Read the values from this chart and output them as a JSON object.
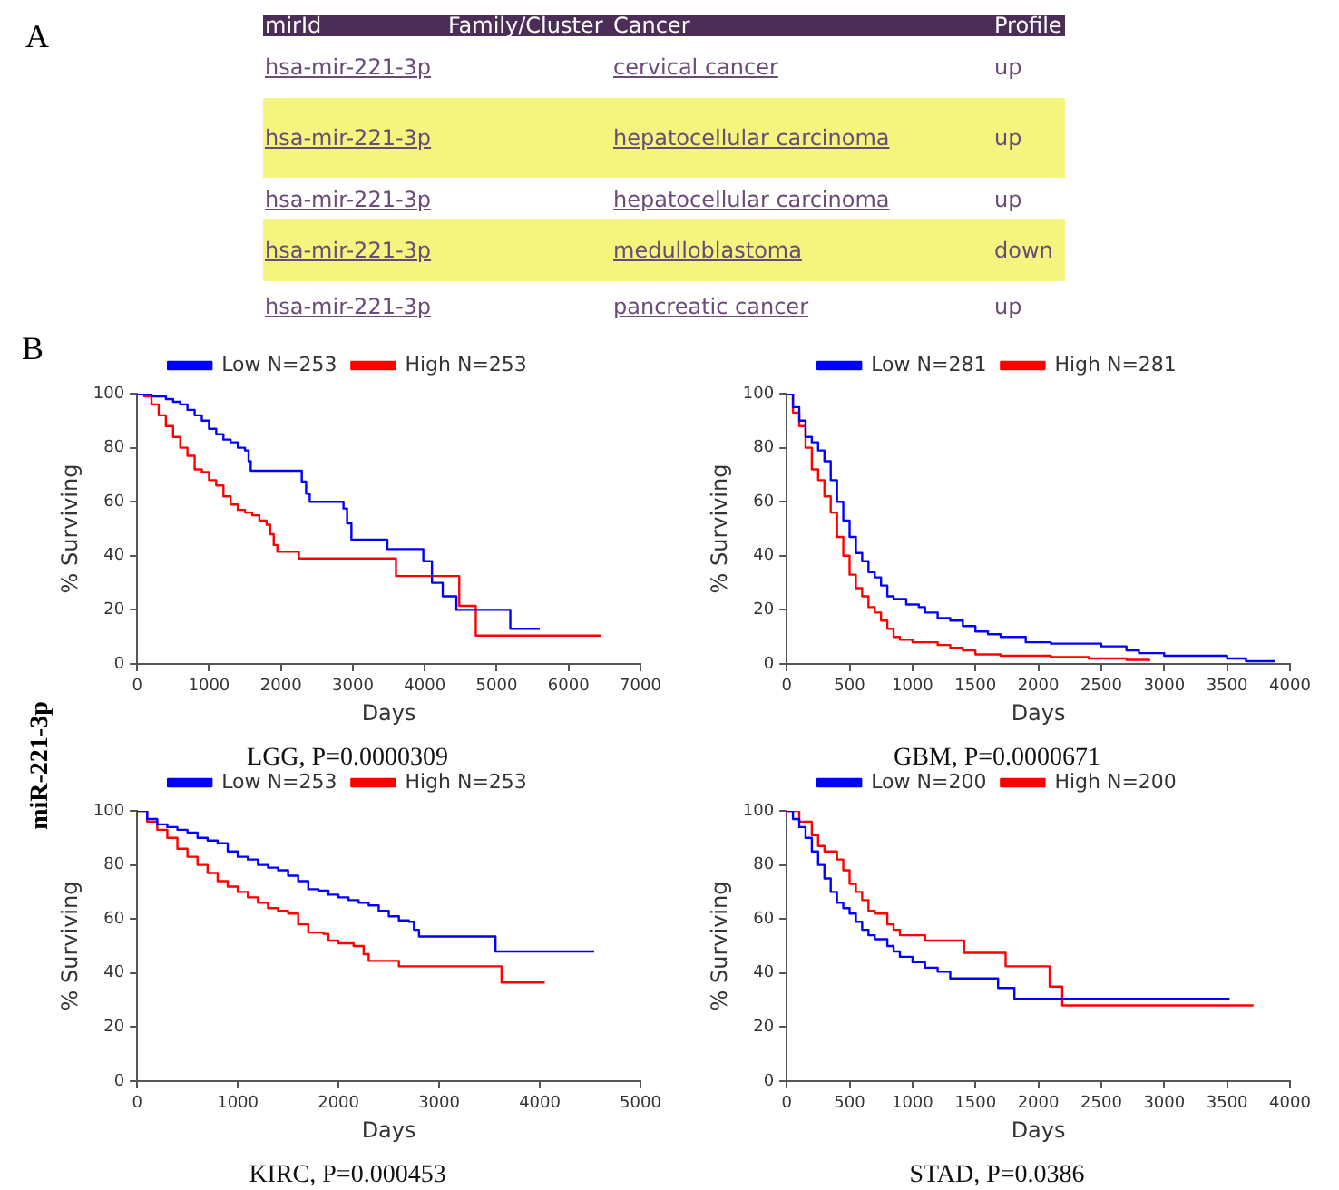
{
  "chart_data": [
    {
      "type": "other",
      "title": "A",
      "categories": [
        "mirId",
        "Family/Cluster",
        "Cancer",
        "Profile"
      ],
      "colors": [
        "#4b2d57",
        "#ffffff",
        "#f3f57f",
        "#ffffff",
        "#f3f57f",
        "#ffffff"
      ],
      "annotations": [
        "hsa-mir-221-3p",
        "cervical cancer",
        "up",
        "hsa-mir-221-3p",
        "hepatocellular carcinoma",
        "up",
        "hsa-mir-221-3p",
        "hepatocellular carcinoma",
        "up",
        "hsa-mir-221-3p",
        "medulloblastoma",
        "down",
        "hsa-mir-221-3p",
        "pancreatic cancer",
        "up"
      ]
    },
    {
      "type": "step",
      "title": "LGG, P=0.0000309",
      "xlabel": "Days",
      "ylabel": "% Surviving",
      "annotations": [
        "B",
        "miR-221-3p"
      ],
      "xlim": [
        0,
        7000
      ],
      "xticks": [
        0,
        1000,
        2000,
        3000,
        4000,
        5000,
        6000,
        7000
      ],
      "ylim": [
        0,
        100
      ],
      "yticks": [
        0,
        20,
        40,
        60,
        80,
        100
      ],
      "legend": "top",
      "grid": false,
      "series": [
        {
          "name": "Low N=253",
          "color": "#0000ff",
          "x": [
            0,
            200,
            400,
            500,
            600,
            700,
            800,
            900,
            1000,
            1100,
            1200,
            1300,
            1400,
            1500,
            1550,
            1580,
            2000,
            2290,
            2350,
            2400,
            2870,
            2920,
            2980,
            3480,
            3980,
            4100,
            4250,
            4440,
            5190,
            5600
          ],
          "values": [
            100,
            99,
            98,
            97,
            96,
            94,
            92,
            90,
            87,
            85,
            83,
            82,
            80,
            79,
            75,
            71.5,
            71.5,
            67.5,
            63,
            60,
            57.5,
            52,
            46,
            42.5,
            38,
            30,
            25,
            20,
            13,
            13
          ]
        },
        {
          "name": "High N=253",
          "color": "#ff0000",
          "x": [
            0,
            100,
            200,
            300,
            400,
            500,
            600,
            700,
            800,
            900,
            1000,
            1100,
            1200,
            1300,
            1400,
            1500,
            1600,
            1700,
            1800,
            1850,
            1900,
            1950,
            2200,
            2250,
            3560,
            3600,
            4480,
            4710,
            6450
          ],
          "values": [
            100,
            99,
            96,
            92,
            88,
            84,
            80,
            77,
            72,
            71,
            68,
            66,
            62,
            59,
            57,
            56,
            55,
            53,
            51.5,
            48,
            44,
            41.5,
            41.5,
            39,
            39,
            32.5,
            21.5,
            10.5,
            10.5
          ]
        }
      ]
    },
    {
      "type": "step",
      "title": "GBM, P=0.0000671",
      "xlabel": "Days",
      "ylabel": "% Surviving",
      "xlim": [
        0,
        4000
      ],
      "xticks": [
        0,
        500,
        1000,
        1500,
        2000,
        2500,
        3000,
        3500,
        4000
      ],
      "ylim": [
        0,
        100
      ],
      "yticks": [
        0,
        20,
        40,
        60,
        80,
        100
      ],
      "legend": "top",
      "grid": false,
      "series": [
        {
          "name": "Low N=281",
          "color": "#0000ff",
          "x": [
            0,
            50,
            100,
            150,
            200,
            250,
            300,
            350,
            400,
            450,
            500,
            550,
            600,
            650,
            700,
            750,
            800,
            850,
            950,
            1050,
            1100,
            1200,
            1300,
            1400,
            1500,
            1600,
            1700,
            1900,
            2100,
            2500,
            2700,
            2800,
            3000,
            3500,
            3650,
            3880
          ],
          "values": [
            100,
            95,
            90,
            84,
            82,
            79,
            75,
            68,
            60,
            53,
            47,
            41,
            38,
            34,
            32,
            29,
            25,
            24,
            22,
            21,
            19,
            17,
            16,
            14,
            12,
            11,
            10,
            8,
            7.5,
            6.5,
            5,
            4,
            3,
            2,
            1,
            1
          ]
        },
        {
          "name": "High N=281",
          "color": "#ff0000",
          "x": [
            0,
            50,
            100,
            150,
            200,
            250,
            300,
            350,
            400,
            450,
            500,
            550,
            600,
            650,
            700,
            750,
            800,
            850,
            900,
            1000,
            1200,
            1300,
            1400,
            1500,
            1700,
            2100,
            2400,
            2700,
            2880
          ],
          "values": [
            100,
            93,
            88,
            80,
            72,
            68,
            62,
            56,
            47,
            40,
            33,
            28,
            25,
            21,
            19,
            16,
            13,
            10,
            9,
            8,
            7,
            6,
            5,
            3.5,
            3,
            2.5,
            2,
            1.5,
            1
          ]
        }
      ]
    },
    {
      "type": "step",
      "title": "KIRC, P=0.000453",
      "xlabel": "Days",
      "ylabel": "% Surviving",
      "xlim": [
        0,
        5000
      ],
      "xticks": [
        0,
        1000,
        2000,
        3000,
        4000,
        5000
      ],
      "ylim": [
        0,
        100
      ],
      "yticks": [
        0,
        20,
        40,
        60,
        80,
        100
      ],
      "legend": "top",
      "grid": false,
      "series": [
        {
          "name": "Low N=253",
          "color": "#0000ff",
          "x": [
            0,
            100,
            200,
            300,
            400,
            500,
            600,
            700,
            800,
            900,
            1000,
            1100,
            1200,
            1300,
            1400,
            1500,
            1600,
            1700,
            1800,
            1900,
            2000,
            2100,
            2200,
            2300,
            2400,
            2500,
            2600,
            2700,
            2750,
            2800,
            3560,
            4540
          ],
          "values": [
            100,
            97,
            95,
            94,
            93,
            92,
            90,
            89,
            88,
            85,
            83,
            82,
            80,
            79,
            78,
            76,
            74,
            71,
            70.5,
            69,
            68,
            67,
            66,
            65,
            63,
            61,
            59.5,
            59,
            56,
            53.5,
            48,
            48
          ]
        },
        {
          "name": "High N=253",
          "color": "#ff0000",
          "x": [
            0,
            100,
            200,
            300,
            400,
            500,
            600,
            700,
            800,
            900,
            1000,
            1100,
            1200,
            1300,
            1400,
            1500,
            1600,
            1700,
            1850,
            1900,
            2000,
            2150,
            2250,
            2300,
            2600,
            3620,
            4050
          ],
          "values": [
            100,
            96,
            93,
            90,
            86,
            83,
            80,
            77,
            74,
            72,
            70,
            68,
            66,
            64,
            63,
            62,
            58,
            55,
            54.5,
            52,
            51,
            50,
            47,
            44.5,
            42.5,
            36.5,
            36.5
          ]
        }
      ]
    },
    {
      "type": "step",
      "title": "STAD, P=0.0386",
      "xlabel": "Days",
      "ylabel": "% Surviving",
      "xlim": [
        0,
        4000
      ],
      "xticks": [
        0,
        500,
        1000,
        1500,
        2000,
        2500,
        3000,
        3500,
        4000
      ],
      "ylim": [
        0,
        100
      ],
      "yticks": [
        0,
        20,
        40,
        60,
        80,
        100
      ],
      "legend": "top",
      "grid": false,
      "series": [
        {
          "name": "Low N=200",
          "color": "#0000ff",
          "x": [
            0,
            50,
            100,
            150,
            200,
            250,
            300,
            350,
            400,
            450,
            500,
            550,
            600,
            650,
            700,
            800,
            850,
            900,
            1000,
            1100,
            1200,
            1300,
            1680,
            1810,
            3520
          ],
          "values": [
            100,
            97,
            94,
            90,
            85,
            80,
            75,
            70,
            66,
            64,
            62,
            59,
            56,
            54,
            52.5,
            50,
            48,
            46,
            44,
            42,
            40.5,
            38,
            34.5,
            30.5,
            30.5
          ]
        },
        {
          "name": "High N=200",
          "color": "#ff0000",
          "x": [
            0,
            100,
            200,
            250,
            300,
            400,
            450,
            500,
            550,
            600,
            650,
            700,
            800,
            850,
            900,
            1100,
            1410,
            1740,
            2090,
            2190,
            3710
          ],
          "values": [
            100,
            96,
            91,
            87,
            85,
            82,
            78,
            73,
            70,
            67,
            63,
            62,
            58,
            56,
            54,
            52,
            47.5,
            42.5,
            35,
            28,
            28
          ]
        }
      ]
    }
  ]
}
